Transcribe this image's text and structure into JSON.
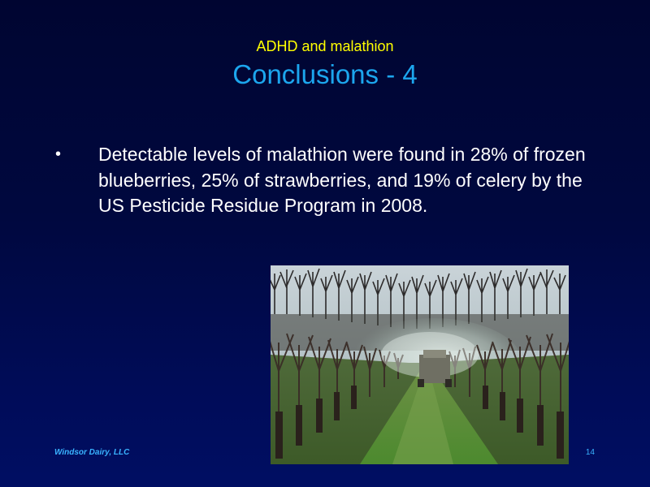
{
  "slide": {
    "subtitle": "ADHD and malathion",
    "title": "Conclusions - 4",
    "bullets": [
      {
        "marker": "•",
        "text": "Detectable levels of malathion were found in 28% of frozen blueberries, 25% of strawberries, and 19% of celery by the US Pesticide Residue Program in 2008."
      }
    ],
    "footer": {
      "company": "Windsor Dairy, LLC",
      "page_number": "14"
    }
  },
  "colors": {
    "background": "#000a4f",
    "subtitle": "#ffff00",
    "title": "#1ca6ee",
    "body_text": "#ffffff",
    "footer": "#39b3ff"
  }
}
